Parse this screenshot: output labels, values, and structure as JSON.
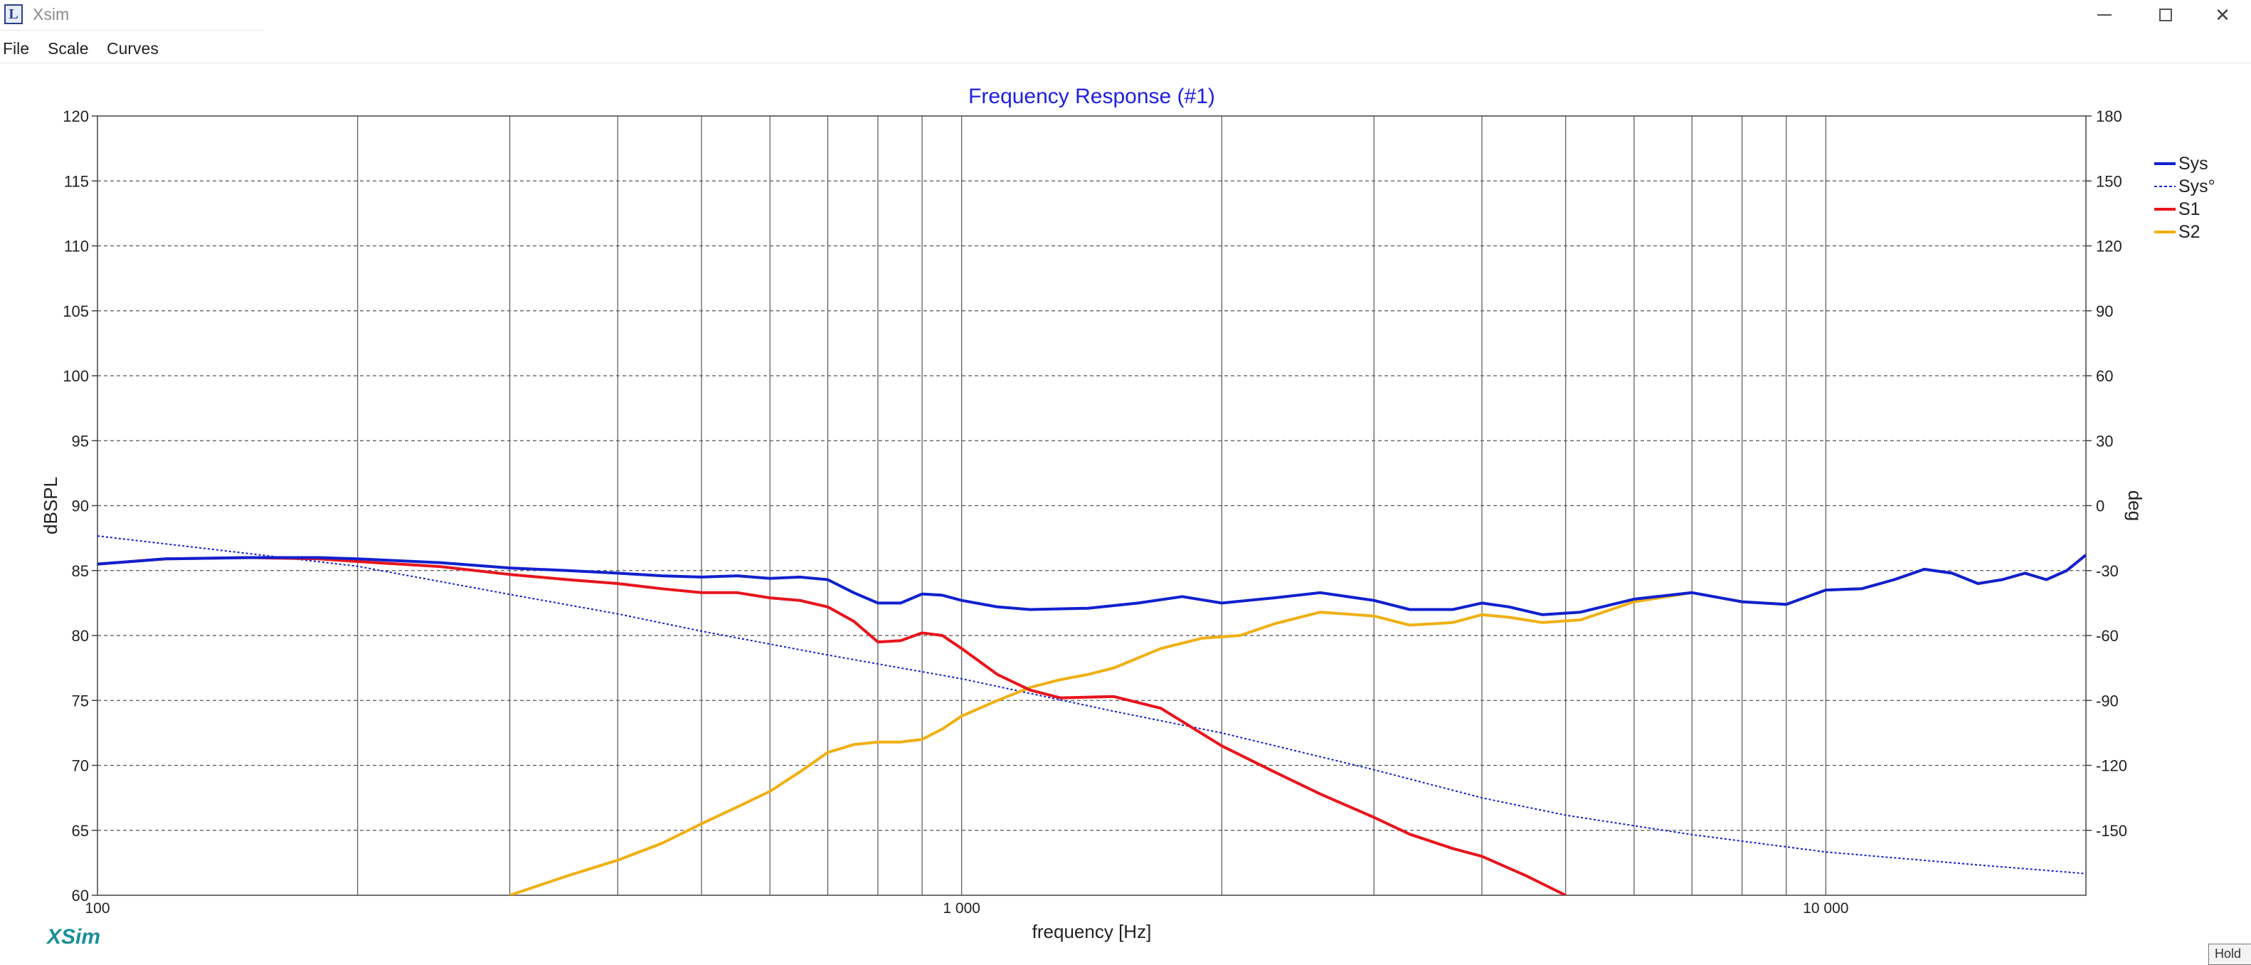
{
  "window": {
    "title": "Xsim",
    "app_icon": "xsim-app-icon"
  },
  "menu": {
    "items": [
      "File",
      "Scale",
      "Curves"
    ]
  },
  "branding": "XSim",
  "hold_button": "Hold",
  "chart_data": {
    "type": "line",
    "title": "Frequency Response (#1)",
    "xlabel": "frequency [Hz]",
    "ylabel": "dBSPL",
    "y2label": "deg",
    "x_scale": "log",
    "xlim": [
      100,
      20000
    ],
    "ylim": [
      60,
      120
    ],
    "y2lim": [
      -180,
      180
    ],
    "x_tick_labels": [
      {
        "value": 100,
        "label": "100"
      },
      {
        "value": 1000,
        "label": "1 000"
      },
      {
        "value": 10000,
        "label": "10 000"
      }
    ],
    "y_ticks": [
      60,
      65,
      70,
      75,
      80,
      85,
      90,
      95,
      100,
      105,
      110,
      115,
      120
    ],
    "y2_ticks": [
      -150,
      -120,
      -90,
      -60,
      -30,
      0,
      30,
      60,
      90,
      120,
      150,
      180
    ],
    "grid": true,
    "legend_position": "right",
    "colors": {
      "title": "#2020e0",
      "sys": "#1020d0",
      "s1": "#e8141c",
      "s2": "#f0b012"
    },
    "series": [
      {
        "name": "Sys",
        "axis": "left",
        "style": "solid",
        "color": "#1020d0",
        "points": [
          [
            100,
            85.5
          ],
          [
            120,
            85.9
          ],
          [
            150,
            86.0
          ],
          [
            180,
            86.0
          ],
          [
            200,
            85.9
          ],
          [
            250,
            85.6
          ],
          [
            300,
            85.2
          ],
          [
            350,
            85.0
          ],
          [
            400,
            84.8
          ],
          [
            450,
            84.6
          ],
          [
            500,
            84.5
          ],
          [
            550,
            84.6
          ],
          [
            600,
            84.4
          ],
          [
            650,
            84.5
          ],
          [
            700,
            84.3
          ],
          [
            750,
            83.3
          ],
          [
            800,
            82.5
          ],
          [
            850,
            82.5
          ],
          [
            900,
            83.2
          ],
          [
            950,
            83.1
          ],
          [
            1000,
            82.7
          ],
          [
            1100,
            82.2
          ],
          [
            1200,
            82.0
          ],
          [
            1400,
            82.1
          ],
          [
            1600,
            82.5
          ],
          [
            1800,
            83.0
          ],
          [
            2000,
            82.5
          ],
          [
            2300,
            82.9
          ],
          [
            2600,
            83.3
          ],
          [
            3000,
            82.7
          ],
          [
            3300,
            82.0
          ],
          [
            3700,
            82.0
          ],
          [
            4000,
            82.5
          ],
          [
            4300,
            82.2
          ],
          [
            4700,
            81.6
          ],
          [
            5200,
            81.8
          ],
          [
            6000,
            82.8
          ],
          [
            7000,
            83.3
          ],
          [
            8000,
            82.6
          ],
          [
            9000,
            82.4
          ],
          [
            10000,
            83.5
          ],
          [
            11000,
            83.6
          ],
          [
            12000,
            84.3
          ],
          [
            13000,
            85.1
          ],
          [
            14000,
            84.8
          ],
          [
            15000,
            84.0
          ],
          [
            16000,
            84.3
          ],
          [
            17000,
            84.8
          ],
          [
            18000,
            84.3
          ],
          [
            19000,
            85.0
          ],
          [
            20000,
            86.2
          ]
        ]
      },
      {
        "name": "Sys°",
        "axis": "right",
        "style": "dotted",
        "color": "#1020d0",
        "points": [
          [
            100,
            -14
          ],
          [
            200,
            -28
          ],
          [
            300,
            -41
          ],
          [
            400,
            -50
          ],
          [
            500,
            -58
          ],
          [
            700,
            -69
          ],
          [
            1000,
            -80
          ],
          [
            1500,
            -95
          ],
          [
            2000,
            -105
          ],
          [
            3000,
            -122
          ],
          [
            4000,
            -135
          ],
          [
            5000,
            -143
          ],
          [
            7000,
            -152
          ],
          [
            10000,
            -160
          ],
          [
            15000,
            -166
          ],
          [
            20000,
            -170
          ]
        ]
      },
      {
        "name": "S1",
        "axis": "left",
        "style": "solid",
        "color": "#e8141c",
        "points": [
          [
            100,
            85.5
          ],
          [
            120,
            85.9
          ],
          [
            150,
            86.0
          ],
          [
            180,
            85.9
          ],
          [
            200,
            85.7
          ],
          [
            250,
            85.3
          ],
          [
            300,
            84.7
          ],
          [
            350,
            84.3
          ],
          [
            400,
            84.0
          ],
          [
            450,
            83.6
          ],
          [
            500,
            83.3
          ],
          [
            550,
            83.3
          ],
          [
            600,
            82.9
          ],
          [
            650,
            82.7
          ],
          [
            700,
            82.2
          ],
          [
            750,
            81.1
          ],
          [
            800,
            79.5
          ],
          [
            850,
            79.6
          ],
          [
            900,
            80.2
          ],
          [
            950,
            80.0
          ],
          [
            1000,
            79.0
          ],
          [
            1100,
            77.0
          ],
          [
            1200,
            75.8
          ],
          [
            1300,
            75.2
          ],
          [
            1500,
            75.3
          ],
          [
            1700,
            74.4
          ],
          [
            2000,
            71.5
          ],
          [
            2300,
            69.5
          ],
          [
            2600,
            67.8
          ],
          [
            3000,
            66.0
          ],
          [
            3300,
            64.7
          ],
          [
            3700,
            63.6
          ],
          [
            4000,
            63.0
          ],
          [
            4500,
            61.5
          ],
          [
            5000,
            60.0
          ]
        ]
      },
      {
        "name": "S2",
        "axis": "left",
        "style": "solid",
        "color": "#f0b012",
        "points": [
          [
            300,
            60.0
          ],
          [
            350,
            61.5
          ],
          [
            400,
            62.7
          ],
          [
            450,
            64.0
          ],
          [
            500,
            65.5
          ],
          [
            550,
            66.8
          ],
          [
            600,
            68.0
          ],
          [
            650,
            69.5
          ],
          [
            700,
            71.0
          ],
          [
            750,
            71.6
          ],
          [
            800,
            71.8
          ],
          [
            850,
            71.8
          ],
          [
            900,
            72.0
          ],
          [
            950,
            72.8
          ],
          [
            1000,
            73.8
          ],
          [
            1100,
            75.0
          ],
          [
            1200,
            76.0
          ],
          [
            1300,
            76.6
          ],
          [
            1400,
            77.0
          ],
          [
            1500,
            77.5
          ],
          [
            1700,
            79.0
          ],
          [
            1900,
            79.8
          ],
          [
            2100,
            80.0
          ],
          [
            2300,
            80.9
          ],
          [
            2600,
            81.8
          ],
          [
            3000,
            81.5
          ],
          [
            3300,
            80.8
          ],
          [
            3700,
            81.0
          ],
          [
            4000,
            81.6
          ],
          [
            4300,
            81.4
          ],
          [
            4700,
            81.0
          ],
          [
            5200,
            81.2
          ],
          [
            6000,
            82.6
          ],
          [
            7000,
            83.3
          ],
          [
            8000,
            82.6
          ],
          [
            9000,
            82.4
          ],
          [
            10000,
            83.5
          ],
          [
            11000,
            83.6
          ],
          [
            12000,
            84.3
          ],
          [
            13000,
            85.1
          ],
          [
            14000,
            84.8
          ],
          [
            15000,
            84.0
          ],
          [
            16000,
            84.3
          ],
          [
            17000,
            84.8
          ],
          [
            18000,
            84.3
          ],
          [
            19000,
            85.0
          ],
          [
            20000,
            86.2
          ]
        ]
      }
    ]
  }
}
